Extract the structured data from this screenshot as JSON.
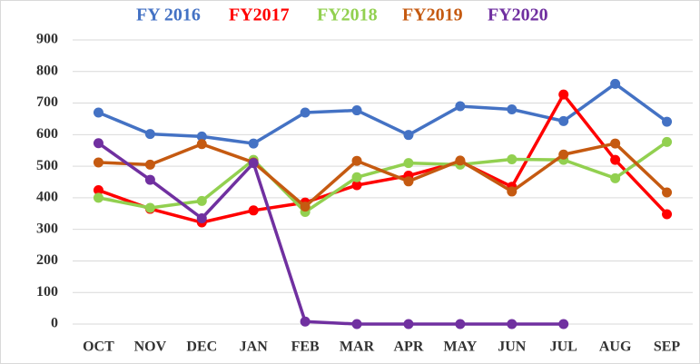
{
  "chart_data": {
    "type": "line",
    "categories": [
      "OCT",
      "NOV",
      "DEC",
      "JAN",
      "FEB",
      "MAR",
      "APR",
      "MAY",
      "JUN",
      "JUL",
      "AUG",
      "SEP"
    ],
    "series": [
      {
        "name": "FY 2016",
        "color": "#4472c4",
        "values": [
          670,
          602,
          594,
          572,
          670,
          677,
          599,
          690,
          680,
          643,
          761,
          641
        ]
      },
      {
        "name": "FY2017",
        "color": "#ff0000",
        "values": [
          424,
          365,
          322,
          360,
          385,
          440,
          470,
          515,
          435,
          727,
          520,
          348
        ]
      },
      {
        "name": "FY2018",
        "color": "#92d050",
        "values": [
          400,
          368,
          390,
          520,
          355,
          465,
          510,
          505,
          522,
          520,
          462,
          577
        ]
      },
      {
        "name": "FY2019",
        "color": "#c55a11",
        "values": [
          512,
          505,
          570,
          512,
          372,
          517,
          452,
          518,
          420,
          537,
          572,
          417
        ]
      },
      {
        "name": "FY2020",
        "color": "#7030a0",
        "values": [
          573,
          457,
          335,
          510,
          8,
          0,
          0,
          0,
          0,
          0,
          null,
          null
        ]
      }
    ],
    "ylim": [
      0,
      900
    ],
    "yticks": [
      0,
      100,
      200,
      300,
      400,
      500,
      600,
      700,
      800,
      900
    ],
    "grid": true,
    "legend": "top"
  }
}
